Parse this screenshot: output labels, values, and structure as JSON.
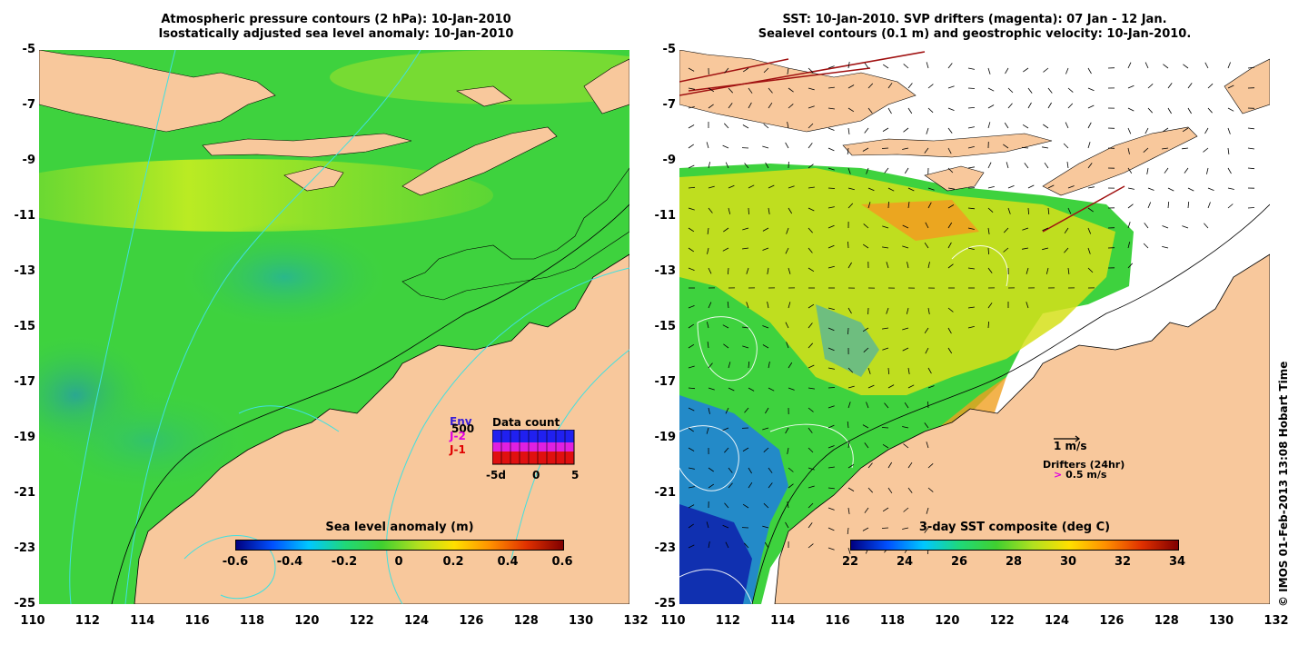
{
  "left_panel": {
    "title_line1": "Atmospheric pressure contours (2 hPa): 10-Jan-2010",
    "title_line2": "Isostatically adjusted sea level anomaly: 10-Jan-2010",
    "colorbar": {
      "label": "Sea level anomaly (m)",
      "ticks": [
        "-0.6",
        "-0.4",
        "-0.2",
        "0",
        "0.2",
        "0.4",
        "0.6"
      ]
    },
    "inset": {
      "title": "Data count",
      "legend": [
        {
          "label": "Env",
          "color": "#3b1fd6"
        },
        {
          "label": "J-2",
          "color": "#e000e0"
        },
        {
          "label": "J-1",
          "color": "#e00000"
        }
      ],
      "ymax_label": "500",
      "x_ticks": [
        "-5d",
        "0",
        "5"
      ]
    }
  },
  "right_panel": {
    "title_line1": "SST: 10-Jan-2010. SVP drifters (magenta): 07 Jan - 12 Jan.",
    "title_line2": "Sealevel contours (0.1 m) and geostrophic velocity: 10-Jan-2010.",
    "colorbar": {
      "label": "3-day SST composite (deg C)",
      "ticks": [
        "22",
        "24",
        "26",
        "28",
        "30",
        "32",
        "34"
      ]
    },
    "velocity_key": "1 m/s",
    "drifters_key_title": "Drifters (24hr)",
    "drifters_key_value": "0.5 m/s"
  },
  "axes": {
    "lat_ticks": [
      "-5",
      "-7",
      "-9",
      "-11",
      "-13",
      "-15",
      "-17",
      "-19",
      "-21",
      "-23",
      "-25"
    ],
    "lon_ticks": [
      "110",
      "112",
      "114",
      "116",
      "118",
      "120",
      "122",
      "124",
      "126",
      "128",
      "130",
      "132"
    ]
  },
  "copyright": "© IMOS 01-Feb-2013 13:08 Hobart Time",
  "colors": {
    "land": "#f8c89c",
    "ocean_green": "#3ed23e",
    "sst_yellow": "#d6e01a",
    "sst_orange": "#f0a020",
    "sst_blue": "#1e7ee0",
    "contour_cyan": "#40e0e0"
  }
}
